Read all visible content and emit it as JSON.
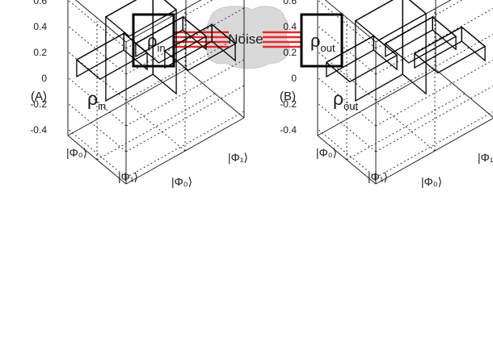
{
  "diagram": {
    "input_symbol": "ρ",
    "input_subscript": "in",
    "noise_label": "Noise",
    "output_symbol": "ρ",
    "output_subscript": "out",
    "colors": {
      "wire": "#e8262a",
      "cloud": "#d9d9d9",
      "box_stroke": "#000000"
    }
  },
  "chart_data": [
    {
      "type": "bar3d",
      "panel_label": "(A)",
      "title_symbol": "ρ",
      "title_subscript": "in",
      "basis": [
        "|Φ₀⟩",
        "|Φ₁⟩"
      ],
      "zlim": [
        -0.45,
        0.65
      ],
      "zticks": [
        "0.6",
        "0.4",
        "0.2",
        "0",
        "-0.2",
        "-0.4"
      ],
      "grid": true,
      "bar_color": "#e0221e",
      "matrix": [
        {
          "row": 0,
          "col": 0,
          "value": 0.65
        },
        {
          "row": 0,
          "col": 1,
          "value": 0.13
        },
        {
          "row": 1,
          "col": 0,
          "value": 0.13
        },
        {
          "row": 1,
          "col": 1,
          "value": -0.1
        }
      ]
    },
    {
      "type": "bar3d",
      "panel_label": "(B)",
      "title_symbol": "ρ",
      "title_subscript": "out",
      "basis": [
        "|Φ₀⟩",
        "|Φ₁⟩"
      ],
      "zlim": [
        -0.45,
        0.65
      ],
      "zticks": [
        "0.6",
        "0.4",
        "0.2",
        "0",
        "-0.2",
        "-0.4"
      ],
      "grid": true,
      "bar_color": "#e0221e",
      "matrix": [
        {
          "row": 0,
          "col": 0,
          "value": 0.62
        },
        {
          "row": 0,
          "col": 1,
          "value": 0.11
        },
        {
          "row": 1,
          "col": 0,
          "value": 0.11
        },
        {
          "row": 1,
          "col": 1,
          "value": -0.1
        }
      ]
    }
  ]
}
